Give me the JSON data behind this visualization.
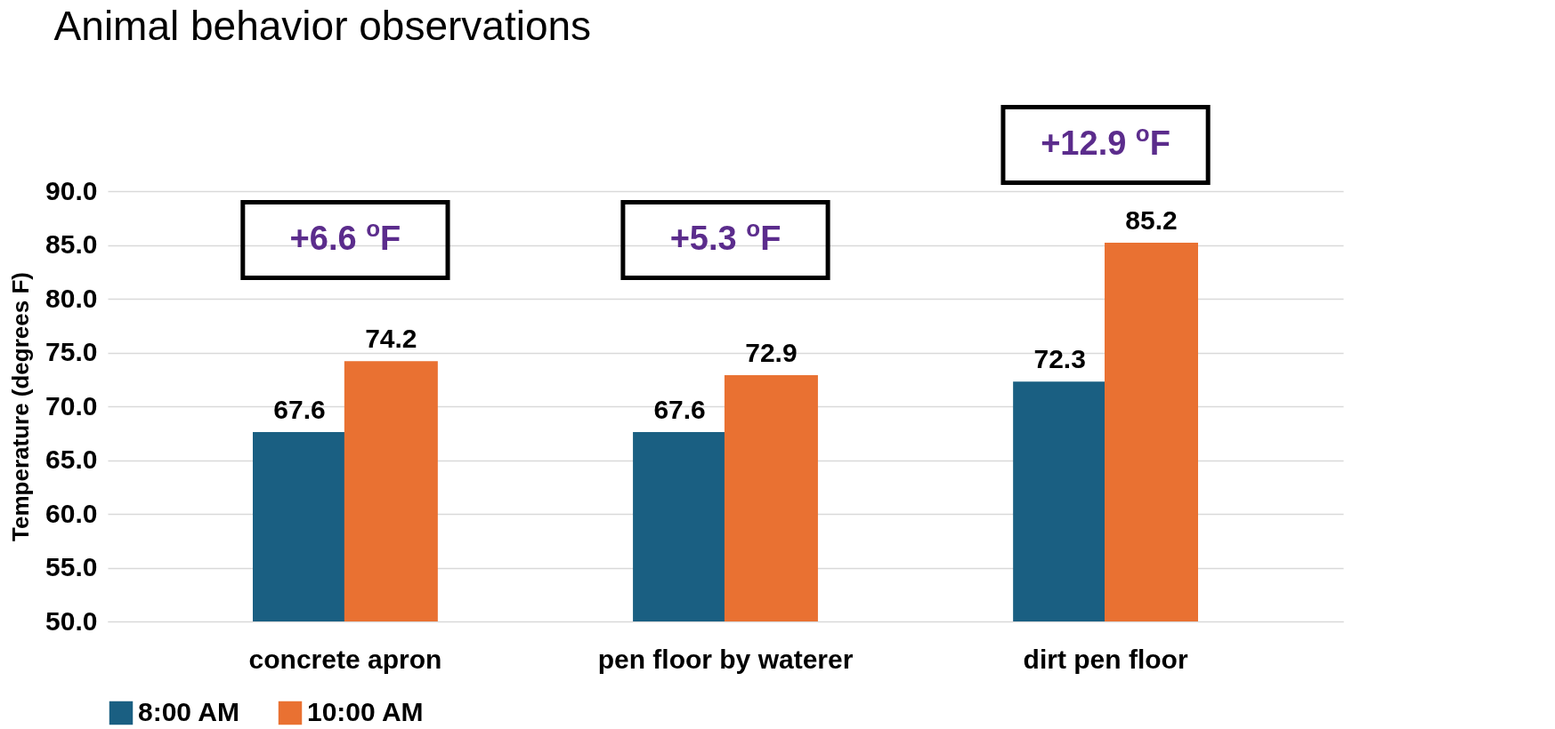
{
  "chart_data": {
    "type": "bar",
    "title": "Animal behavior observations",
    "ylabel": "Temperature (degrees F)",
    "categories": [
      "concrete apron",
      "pen floor by waterer",
      "dirt pen floor"
    ],
    "series": [
      {
        "name": "8:00 AM",
        "color": "#1a5f82",
        "values": [
          67.6,
          67.6,
          72.3
        ]
      },
      {
        "name": "10:00 AM",
        "color": "#e97132",
        "values": [
          74.2,
          72.9,
          85.2
        ]
      }
    ],
    "ylim": [
      50,
      90
    ],
    "yticks": [
      {
        "value": 50,
        "label": "50.0"
      },
      {
        "value": 55,
        "label": "55.0"
      },
      {
        "value": 60,
        "label": "60.0"
      },
      {
        "value": 65,
        "label": "65.0"
      },
      {
        "value": 70,
        "label": "70.0"
      },
      {
        "value": 75,
        "label": "75.0"
      },
      {
        "value": 80,
        "label": "80.0"
      },
      {
        "value": 85,
        "label": "85.0"
      },
      {
        "value": 90,
        "label": "90.0"
      }
    ],
    "grid": "y",
    "legend": "bottom",
    "data_labels": true,
    "annotations": [
      "+6.6 $^{o}$F",
      "+5.3 $^{o}$F",
      "+12.9 $^{o}$F"
    ]
  }
}
